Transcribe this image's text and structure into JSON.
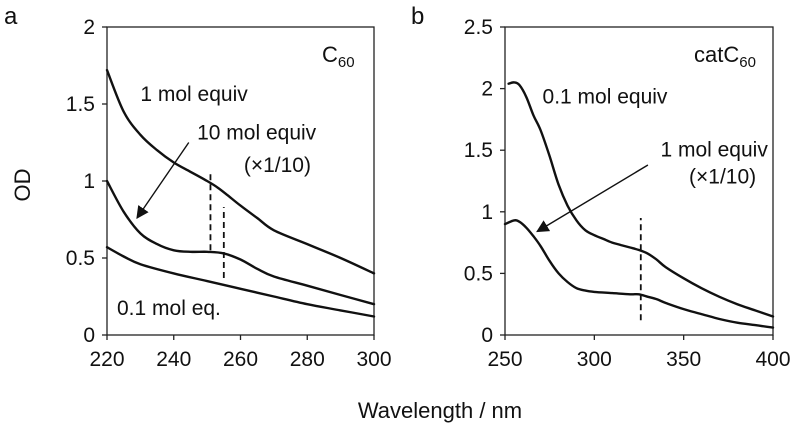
{
  "figure": {
    "xlabel": "Wavelength / nm",
    "ylabel": "OD"
  },
  "chart_data": [
    {
      "panel": "a",
      "type": "line",
      "title": "C60",
      "title_base": "C",
      "title_sub": "60",
      "xlim": [
        220,
        300
      ],
      "ylim": [
        0,
        2
      ],
      "xticks": [
        "220",
        "240",
        "260",
        "280",
        "300"
      ],
      "yticks": [
        "0",
        "0.5",
        "1",
        "1.5",
        "2"
      ],
      "series": [
        {
          "name": "1 mol equiv",
          "x": [
            220,
            225,
            230,
            235,
            240,
            245,
            250,
            253,
            256,
            260,
            265,
            270,
            280,
            290,
            300
          ],
          "y": [
            1.72,
            1.45,
            1.3,
            1.2,
            1.12,
            1.06,
            1.0,
            0.96,
            0.91,
            0.84,
            0.76,
            0.68,
            0.59,
            0.5,
            0.4
          ]
        },
        {
          "name": "10 mol equiv (×1/10)",
          "x": [
            220,
            225,
            230,
            235,
            240,
            245,
            250,
            255,
            260,
            265,
            270,
            280,
            290,
            300
          ],
          "y": [
            1.0,
            0.8,
            0.66,
            0.59,
            0.55,
            0.54,
            0.54,
            0.53,
            0.49,
            0.43,
            0.38,
            0.32,
            0.26,
            0.2
          ]
        },
        {
          "name": "0.1 mol eq.",
          "x": [
            220,
            225,
            230,
            240,
            250,
            260,
            270,
            280,
            290,
            300
          ],
          "y": [
            0.57,
            0.51,
            0.46,
            0.4,
            0.35,
            0.3,
            0.25,
            0.2,
            0.16,
            0.12
          ]
        }
      ],
      "markers": [
        {
          "x": 251,
          "y_low": 0.55,
          "y_high": 1.05
        },
        {
          "x": 255,
          "y_low": 0.37,
          "y_high": 0.83
        }
      ],
      "annotations": [
        {
          "text": "1 mol equiv",
          "x": 230,
          "y": 1.52
        },
        {
          "text": "10 mol equiv",
          "x": 247,
          "y": 1.27
        },
        {
          "text": "(×1/10)",
          "x": 261,
          "y": 1.06
        },
        {
          "text": "0.1 mol eq.",
          "x": 223,
          "y": 0.13
        }
      ],
      "arrow": {
        "from": [
          244.5,
          1.25
        ],
        "to": [
          229,
          0.76
        ]
      }
    },
    {
      "panel": "b",
      "type": "line",
      "title": "catC60",
      "title_base": "catC",
      "title_sub": "60",
      "xlim": [
        250,
        400
      ],
      "ylim": [
        0,
        2.5
      ],
      "xticks": [
        "250",
        "300",
        "350",
        "400"
      ],
      "yticks": [
        "0",
        "0.5",
        "1",
        "1.5",
        "2",
        "2.5"
      ],
      "series": [
        {
          "name": "0.1 mol equiv",
          "x": [
            252,
            255,
            258,
            262,
            266,
            270,
            275,
            280,
            285,
            290,
            295,
            300,
            305,
            310,
            315,
            320,
            325,
            330,
            335,
            340,
            350,
            360,
            370,
            380,
            390,
            400
          ],
          "y": [
            2.04,
            2.05,
            2.03,
            1.93,
            1.78,
            1.66,
            1.45,
            1.22,
            1.05,
            0.93,
            0.85,
            0.81,
            0.78,
            0.75,
            0.73,
            0.71,
            0.69,
            0.66,
            0.61,
            0.55,
            0.46,
            0.38,
            0.31,
            0.25,
            0.2,
            0.15
          ]
        },
        {
          "name": "1 mol equiv (×1/10)",
          "x": [
            250,
            255,
            258,
            262,
            266,
            270,
            275,
            280,
            285,
            290,
            295,
            300,
            310,
            320,
            325,
            330,
            335,
            340,
            350,
            360,
            370,
            380,
            390,
            400
          ],
          "y": [
            0.9,
            0.93,
            0.92,
            0.87,
            0.8,
            0.72,
            0.6,
            0.5,
            0.43,
            0.38,
            0.36,
            0.35,
            0.34,
            0.33,
            0.33,
            0.31,
            0.29,
            0.26,
            0.21,
            0.17,
            0.13,
            0.1,
            0.08,
            0.06
          ]
        }
      ],
      "markers": [
        {
          "x": 326,
          "y_low": 0.12,
          "y_high": 0.95
        }
      ],
      "annotations": [
        {
          "text": "0.1 mol equiv",
          "x": 271,
          "y": 1.88
        },
        {
          "text": "1 mol equiv",
          "x": 337,
          "y": 1.45
        },
        {
          "text": "(×1/10)",
          "x": 353,
          "y": 1.23
        }
      ],
      "arrow": {
        "from": [
          330,
          1.38
        ],
        "to": [
          268,
          0.84
        ]
      }
    }
  ],
  "labels": {
    "panel_a": "a",
    "panel_b": "b",
    "a_ann_1": "1 mol equiv",
    "a_ann_2": "10 mol equiv",
    "a_ann_3": "(×1/10)",
    "a_ann_4": "0.1 mol eq.",
    "b_ann_1": "0.1 mol equiv",
    "b_ann_2": "1 mol equiv",
    "b_ann_3": "(×1/10)"
  }
}
